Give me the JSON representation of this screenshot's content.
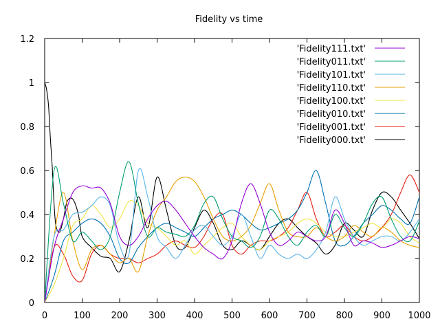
{
  "chart_data": {
    "type": "line",
    "title": "Fidelity vs time",
    "xlabel": "",
    "ylabel": "",
    "xlim": [
      0,
      1000
    ],
    "ylim": [
      0,
      1.2
    ],
    "xticks": [
      0,
      100,
      200,
      300,
      400,
      500,
      600,
      700,
      800,
      900,
      1000
    ],
    "yticks": [
      0,
      0.2,
      0.4,
      0.6,
      0.8,
      1,
      1.2
    ],
    "ytick_labels": [
      "0",
      "0.2",
      "0.4",
      "0.6",
      "0.8",
      "1",
      "1.2"
    ],
    "grid": false,
    "legend_position": "top-right",
    "series": [
      {
        "name": "'Fidelity111.txt'",
        "color": "#9400d3",
        "x": [
          0,
          25,
          50,
          75,
          100,
          125,
          150,
          175,
          200,
          225,
          250,
          275,
          300,
          325,
          350,
          375,
          400,
          425,
          450,
          475,
          500,
          525,
          550,
          575,
          600,
          625,
          650,
          675,
          700,
          725,
          750,
          775,
          800,
          825,
          850,
          875,
          900,
          925,
          950,
          975,
          1000
        ],
        "y": [
          0,
          0.25,
          0.38,
          0.5,
          0.53,
          0.52,
          0.52,
          0.45,
          0.3,
          0.26,
          0.3,
          0.38,
          0.44,
          0.46,
          0.42,
          0.36,
          0.3,
          0.25,
          0.22,
          0.2,
          0.28,
          0.45,
          0.54,
          0.45,
          0.32,
          0.26,
          0.28,
          0.32,
          0.3,
          0.28,
          0.3,
          0.42,
          0.36,
          0.26,
          0.28,
          0.27,
          0.25,
          0.26,
          0.28,
          0.3,
          0.29
        ]
      },
      {
        "name": "'Fidelity011.txt'",
        "color": "#009e73",
        "x": [
          0,
          25,
          50,
          75,
          100,
          125,
          150,
          175,
          200,
          225,
          250,
          275,
          300,
          325,
          350,
          375,
          400,
          425,
          450,
          475,
          500,
          525,
          550,
          575,
          600,
          625,
          650,
          675,
          700,
          725,
          750,
          775,
          800,
          825,
          850,
          875,
          900,
          925,
          950,
          975,
          1000
        ],
        "y": [
          0,
          0.6,
          0.45,
          0.28,
          0.32,
          0.28,
          0.24,
          0.3,
          0.5,
          0.64,
          0.45,
          0.3,
          0.34,
          0.32,
          0.31,
          0.3,
          0.35,
          0.45,
          0.48,
          0.38,
          0.3,
          0.28,
          0.25,
          0.3,
          0.42,
          0.38,
          0.3,
          0.26,
          0.32,
          0.35,
          0.3,
          0.4,
          0.34,
          0.3,
          0.36,
          0.45,
          0.48,
          0.38,
          0.3,
          0.28,
          0.37
        ]
      },
      {
        "name": "'Fidelity101.txt'",
        "color": "#56b4e9",
        "x": [
          0,
          25,
          50,
          75,
          100,
          125,
          150,
          175,
          200,
          225,
          250,
          275,
          300,
          325,
          350,
          375,
          400,
          425,
          450,
          475,
          500,
          525,
          550,
          575,
          600,
          625,
          650,
          675,
          700,
          725,
          750,
          775,
          800,
          825,
          850,
          875,
          900,
          925,
          950,
          975,
          1000
        ],
        "y": [
          0,
          0.3,
          0.33,
          0.4,
          0.41,
          0.44,
          0.48,
          0.44,
          0.26,
          0.22,
          0.6,
          0.48,
          0.3,
          0.25,
          0.2,
          0.26,
          0.33,
          0.35,
          0.3,
          0.26,
          0.3,
          0.4,
          0.3,
          0.2,
          0.26,
          0.22,
          0.2,
          0.22,
          0.2,
          0.24,
          0.32,
          0.48,
          0.38,
          0.3,
          0.26,
          0.28,
          0.3,
          0.3,
          0.28,
          0.32,
          0.38
        ]
      },
      {
        "name": "'Fidelity110.txt'",
        "color": "#e69f00",
        "x": [
          0,
          25,
          50,
          75,
          100,
          125,
          150,
          175,
          200,
          225,
          250,
          275,
          300,
          325,
          350,
          375,
          400,
          425,
          450,
          475,
          500,
          525,
          550,
          575,
          600,
          625,
          650,
          675,
          700,
          725,
          750,
          775,
          800,
          825,
          850,
          875,
          900,
          925,
          950,
          975,
          1000
        ],
        "y": [
          0,
          0.3,
          0.5,
          0.28,
          0.15,
          0.24,
          0.26,
          0.22,
          0.18,
          0.2,
          0.14,
          0.3,
          0.42,
          0.48,
          0.55,
          0.57,
          0.55,
          0.48,
          0.38,
          0.3,
          0.28,
          0.3,
          0.35,
          0.45,
          0.54,
          0.42,
          0.32,
          0.3,
          0.3,
          0.34,
          0.3,
          0.28,
          0.3,
          0.35,
          0.32,
          0.3,
          0.34,
          0.32,
          0.28,
          0.26,
          0.25
        ]
      },
      {
        "name": "'Fidelity100.txt'",
        "color": "#f0e442",
        "x": [
          0,
          25,
          50,
          75,
          100,
          125,
          150,
          175,
          200,
          225,
          250,
          275,
          300,
          325,
          350,
          375,
          400,
          425,
          450,
          475,
          500,
          525,
          550,
          575,
          600,
          625,
          650,
          675,
          700,
          725,
          750,
          775,
          800,
          825,
          850,
          875,
          900,
          925,
          950,
          975,
          1000
        ],
        "y": [
          0,
          0.08,
          0.2,
          0.35,
          0.38,
          0.44,
          0.4,
          0.34,
          0.38,
          0.46,
          0.44,
          0.36,
          0.34,
          0.3,
          0.26,
          0.28,
          0.22,
          0.26,
          0.3,
          0.34,
          0.36,
          0.3,
          0.26,
          0.24,
          0.28,
          0.3,
          0.32,
          0.36,
          0.38,
          0.36,
          0.32,
          0.3,
          0.3,
          0.32,
          0.34,
          0.36,
          0.34,
          0.38,
          0.36,
          0.3,
          0.27
        ]
      },
      {
        "name": "'Fidelity010.txt'",
        "color": "#0072b2",
        "x": [
          0,
          25,
          50,
          75,
          100,
          125,
          150,
          175,
          200,
          225,
          250,
          275,
          300,
          325,
          350,
          375,
          400,
          425,
          450,
          475,
          500,
          525,
          550,
          575,
          600,
          625,
          650,
          675,
          700,
          725,
          750,
          775,
          800,
          825,
          850,
          875,
          900,
          925,
          950,
          975,
          1000
        ],
        "y": [
          0,
          0.12,
          0.28,
          0.32,
          0.36,
          0.38,
          0.36,
          0.3,
          0.2,
          0.18,
          0.25,
          0.3,
          0.34,
          0.36,
          0.34,
          0.32,
          0.3,
          0.34,
          0.38,
          0.4,
          0.42,
          0.4,
          0.36,
          0.33,
          0.34,
          0.36,
          0.38,
          0.42,
          0.5,
          0.6,
          0.45,
          0.28,
          0.26,
          0.3,
          0.36,
          0.4,
          0.44,
          0.42,
          0.38,
          0.36,
          0.48
        ]
      },
      {
        "name": "'Fidelity001.txt'",
        "color": "#e51e10",
        "x": [
          0,
          25,
          50,
          75,
          100,
          125,
          150,
          175,
          200,
          225,
          250,
          275,
          300,
          325,
          350,
          375,
          400,
          425,
          450,
          475,
          500,
          525,
          550,
          575,
          600,
          625,
          650,
          675,
          700,
          725,
          750,
          775,
          800,
          825,
          850,
          875,
          900,
          925,
          950,
          975,
          1000
        ],
        "y": [
          0,
          0.25,
          0.22,
          0.12,
          0.1,
          0.22,
          0.26,
          0.22,
          0.2,
          0.2,
          0.18,
          0.2,
          0.22,
          0.26,
          0.28,
          0.26,
          0.25,
          0.3,
          0.38,
          0.4,
          0.26,
          0.22,
          0.26,
          0.28,
          0.28,
          0.3,
          0.34,
          0.42,
          0.5,
          0.38,
          0.3,
          0.32,
          0.35,
          0.3,
          0.28,
          0.3,
          0.34,
          0.4,
          0.5,
          0.58,
          0.5
        ]
      },
      {
        "name": "'Fidelity000.txt'",
        "color": "#000000",
        "x": [
          0,
          5,
          10,
          15,
          20,
          25,
          30,
          40,
          50,
          60,
          75,
          90,
          100,
          125,
          150,
          175,
          200,
          225,
          250,
          275,
          300,
          325,
          350,
          375,
          400,
          425,
          450,
          475,
          500,
          525,
          550,
          575,
          600,
          625,
          650,
          675,
          700,
          725,
          750,
          775,
          800,
          825,
          850,
          875,
          900,
          925,
          950,
          975,
          1000
        ],
        "y": [
          1.0,
          0.97,
          0.9,
          0.75,
          0.62,
          0.45,
          0.35,
          0.32,
          0.38,
          0.46,
          0.47,
          0.4,
          0.3,
          0.25,
          0.21,
          0.2,
          0.14,
          0.28,
          0.48,
          0.34,
          0.57,
          0.42,
          0.26,
          0.25,
          0.34,
          0.42,
          0.36,
          0.26,
          0.24,
          0.28,
          0.26,
          0.24,
          0.3,
          0.36,
          0.38,
          0.34,
          0.3,
          0.27,
          0.22,
          0.26,
          0.36,
          0.33,
          0.3,
          0.42,
          0.5,
          0.48,
          0.42,
          0.36,
          0.29
        ]
      }
    ]
  }
}
